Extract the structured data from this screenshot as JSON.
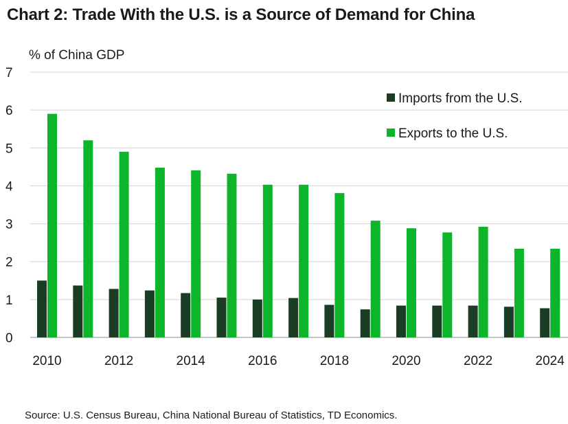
{
  "chart_data": {
    "type": "bar",
    "title": "Chart 2: Trade With the U.S. is a Source of Demand for China",
    "ylabel": "% of China GDP",
    "xlabel": "",
    "ylim": [
      0,
      7
    ],
    "yticks": [
      "0",
      "1",
      "2",
      "3",
      "4",
      "5",
      "6",
      "7"
    ],
    "categories": [
      "2010",
      "2011",
      "2012",
      "2013",
      "2014",
      "2015",
      "2016",
      "2017",
      "2018",
      "2019",
      "2020",
      "2021",
      "2022",
      "2023",
      "2024"
    ],
    "xtick_labels": [
      "2010",
      "2012",
      "2014",
      "2016",
      "2018",
      "2020",
      "2022",
      "2024"
    ],
    "series": [
      {
        "name": "Imports from the U.S.",
        "color": "#1b3d23",
        "values": [
          1.5,
          1.37,
          1.28,
          1.24,
          1.17,
          1.05,
          1.0,
          1.04,
          0.86,
          0.74,
          0.84,
          0.84,
          0.84,
          0.81,
          0.77
        ]
      },
      {
        "name": "Exports to the U.S.",
        "color": "#0db52b",
        "values": [
          5.9,
          5.2,
          4.9,
          4.48,
          4.41,
          4.32,
          4.03,
          4.03,
          3.81,
          3.08,
          2.88,
          2.77,
          2.92,
          2.34,
          2.34
        ]
      }
    ],
    "grid": true,
    "legend_position": "top-right",
    "source": "Source: U.S. Census Bureau, China National Bureau of Statistics, TD Economics."
  }
}
